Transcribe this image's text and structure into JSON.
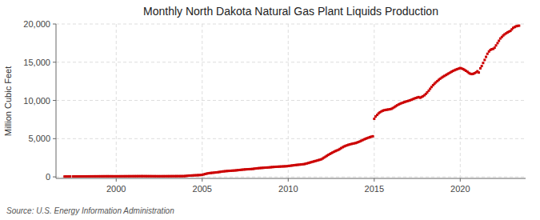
{
  "chart_data": {
    "type": "scatter",
    "title": "Monthly North Dakota Natural Gas Plant Liquids Production",
    "ylabel": "Million Cubic Feet",
    "annotations": [
      "Source: U.S. Energy Information Administration"
    ],
    "color": "#CC0000",
    "marker": "square",
    "grid": true,
    "xlim": [
      1996.5,
      2023.8
    ],
    "xticks": [
      2000,
      2005,
      2010,
      2015,
      2020
    ],
    "ylim": [
      -200,
      20000
    ],
    "yticks": [
      0,
      {
        "value": 5000,
        "label": "5,000"
      },
      {
        "value": 10000,
        "label": "10,000"
      },
      {
        "value": 15000,
        "label": "15,000"
      },
      {
        "value": 20000,
        "label": "20,000"
      }
    ],
    "x": [
      1997.0,
      1997.08,
      1997.17,
      1997.25,
      1997.33,
      1997.5,
      1997.58,
      1997.67,
      1997.75,
      1997.83,
      1997.92,
      1998.0,
      1998.08,
      1998.17,
      1998.25,
      1998.33,
      1998.42,
      1998.5,
      1998.58,
      1998.67,
      1998.75,
      1998.83,
      1998.92,
      1999.0,
      1999.08,
      1999.17,
      1999.25,
      1999.33,
      1999.42,
      1999.5,
      1999.58,
      1999.67,
      1999.75,
      1999.83,
      1999.92,
      2000.0,
      2000.08,
      2000.17,
      2000.25,
      2000.33,
      2000.42,
      2000.5,
      2000.58,
      2000.67,
      2000.75,
      2000.83,
      2000.92,
      2001.0,
      2001.08,
      2001.17,
      2001.25,
      2001.33,
      2001.42,
      2001.5,
      2001.58,
      2001.67,
      2001.75,
      2001.83,
      2001.92,
      2002.0,
      2002.08,
      2002.17,
      2002.25,
      2002.33,
      2002.42,
      2002.5,
      2002.58,
      2002.67,
      2002.75,
      2002.83,
      2002.92,
      2003.0,
      2003.08,
      2003.17,
      2003.25,
      2003.33,
      2003.42,
      2003.5,
      2003.58,
      2003.67,
      2003.75,
      2003.83,
      2003.92,
      2004.0,
      2004.08,
      2004.17,
      2004.25,
      2004.33,
      2004.42,
      2004.5,
      2004.58,
      2004.67,
      2004.75,
      2004.83,
      2004.92,
      2005.0,
      2005.08,
      2005.17,
      2005.25,
      2005.33,
      2005.42,
      2005.5,
      2005.58,
      2005.67,
      2005.75,
      2005.83,
      2005.92,
      2006.0,
      2006.08,
      2006.17,
      2006.25,
      2006.33,
      2006.42,
      2006.5,
      2006.58,
      2006.67,
      2006.75,
      2006.83,
      2006.92,
      2007.0,
      2007.08,
      2007.17,
      2007.25,
      2007.33,
      2007.42,
      2007.5,
      2007.58,
      2007.67,
      2007.75,
      2007.83,
      2007.92,
      2008.0,
      2008.08,
      2008.17,
      2008.25,
      2008.33,
      2008.42,
      2008.5,
      2008.58,
      2008.67,
      2008.75,
      2008.83,
      2008.92,
      2009.0,
      2009.08,
      2009.17,
      2009.25,
      2009.33,
      2009.42,
      2009.5,
      2009.58,
      2009.67,
      2009.75,
      2009.83,
      2009.92,
      2010.0,
      2010.08,
      2010.17,
      2010.25,
      2010.33,
      2010.42,
      2010.5,
      2010.58,
      2010.67,
      2010.75,
      2010.83,
      2010.92,
      2011.0,
      2011.08,
      2011.17,
      2011.25,
      2011.33,
      2011.42,
      2011.5,
      2011.58,
      2011.67,
      2011.75,
      2011.83,
      2011.92,
      2012.0,
      2012.08,
      2012.17,
      2012.25,
      2012.33,
      2012.42,
      2012.5,
      2012.58,
      2012.67,
      2012.75,
      2012.83,
      2012.92,
      2013.0,
      2013.08,
      2013.17,
      2013.25,
      2013.33,
      2013.42,
      2013.5,
      2013.58,
      2013.67,
      2013.75,
      2013.83,
      2013.92,
      2014.0,
      2014.08,
      2014.17,
      2014.25,
      2014.33,
      2014.42,
      2014.5,
      2014.58,
      2014.67,
      2014.75,
      2014.83,
      2014.92,
      2015.0,
      2015.08,
      2015.17,
      2015.25,
      2015.33,
      2015.42,
      2015.5,
      2015.58,
      2015.67,
      2015.75,
      2015.83,
      2015.92,
      2016.0,
      2016.08,
      2016.17,
      2016.25,
      2016.33,
      2016.42,
      2016.5,
      2016.58,
      2016.67,
      2016.75,
      2016.83,
      2016.92,
      2017.0,
      2017.08,
      2017.17,
      2017.25,
      2017.33,
      2017.42,
      2017.5,
      2017.58,
      2017.67,
      2017.75,
      2017.83,
      2017.92,
      2018.0,
      2018.08,
      2018.17,
      2018.25,
      2018.33,
      2018.42,
      2018.5,
      2018.58,
      2018.67,
      2018.75,
      2018.83,
      2018.92,
      2019.0,
      2019.08,
      2019.17,
      2019.25,
      2019.33,
      2019.42,
      2019.5,
      2019.58,
      2019.67,
      2019.75,
      2019.83,
      2019.92,
      2020.0,
      2020.08,
      2020.17,
      2020.25,
      2020.33,
      2020.42,
      2020.5,
      2020.58,
      2020.67,
      2020.75,
      2020.83,
      2020.92,
      2021.0,
      2021.08,
      2021.17,
      2021.25,
      2021.33,
      2021.42,
      2021.5,
      2021.58,
      2021.67,
      2021.75,
      2021.83,
      2021.92,
      2022.0,
      2022.08,
      2022.17,
      2022.25,
      2022.33,
      2022.42,
      2022.5,
      2022.58,
      2022.67,
      2022.75,
      2022.83,
      2022.92,
      2023.0,
      2023.08,
      2023.17,
      2023.25,
      2023.33,
      2023.42
    ],
    "values": [
      50,
      52,
      53,
      54,
      55,
      56,
      57,
      58,
      59,
      60,
      61,
      62,
      63,
      64,
      65,
      66,
      67,
      68,
      69,
      70,
      71,
      72,
      73,
      74,
      75,
      76,
      77,
      78,
      79,
      80,
      79,
      78,
      77,
      76,
      75,
      76,
      77,
      78,
      79,
      80,
      81,
      82,
      83,
      84,
      85,
      86,
      87,
      88,
      89,
      90,
      91,
      92,
      93,
      94,
      93,
      92,
      91,
      90,
      89,
      88,
      87,
      86,
      85,
      84,
      83,
      82,
      83,
      84,
      85,
      86,
      87,
      88,
      89,
      90,
      91,
      92,
      93,
      94,
      95,
      96,
      97,
      98,
      99,
      110,
      130,
      150,
      165,
      175,
      185,
      195,
      205,
      215,
      225,
      235,
      245,
      280,
      320,
      370,
      420,
      460,
      490,
      510,
      530,
      550,
      570,
      590,
      610,
      640,
      670,
      700,
      720,
      740,
      760,
      775,
      790,
      800,
      815,
      825,
      840,
      860,
      880,
      900,
      920,
      940,
      960,
      975,
      990,
      1000,
      1010,
      1020,
      1035,
      1060,
      1090,
      1110,
      1130,
      1150,
      1165,
      1180,
      1195,
      1210,
      1220,
      1230,
      1245,
      1265,
      1285,
      1300,
      1315,
      1325,
      1335,
      1345,
      1355,
      1365,
      1375,
      1385,
      1395,
      1420,
      1445,
      1470,
      1495,
      1520,
      1545,
      1565,
      1585,
      1605,
      1625,
      1645,
      1665,
      1710,
      1760,
      1810,
      1865,
      1920,
      1975,
      2025,
      2075,
      2130,
      2185,
      2240,
      2295,
      2400,
      2520,
      2640,
      2760,
      2880,
      2990,
      3090,
      3190,
      3290,
      3380,
      3460,
      3540,
      3650,
      3770,
      3880,
      3980,
      4060,
      4130,
      4195,
      4250,
      4300,
      4345,
      4385,
      4425,
      4490,
      4560,
      4640,
      4730,
      4820,
      4910,
      4990,
      5060,
      5130,
      5200,
      5260,
      5310,
      7600,
      7900,
      8100,
      8300,
      8450,
      8570,
      8660,
      8720,
      8760,
      8790,
      8820,
      8850,
      8900,
      9000,
      9120,
      9240,
      9360,
      9470,
      9560,
      9640,
      9710,
      9780,
      9840,
      9900,
      9960,
      10020,
      10090,
      10170,
      10250,
      10320,
      10380,
      10440,
      10350,
      10450,
      10550,
      10680,
      10850,
      11050,
      11280,
      11520,
      11760,
      11990,
      12180,
      12360,
      12530,
      12690,
      12840,
      12980,
      13100,
      13210,
      13320,
      13430,
      13540,
      13650,
      13760,
      13860,
      13950,
      14030,
      14100,
      14170,
      14240,
      14180,
      14100,
      14000,
      13880,
      13750,
      13600,
      13500,
      13450,
      13480,
      13560,
      13680,
      13820,
      13650,
      14200,
      14500,
      14900,
      15300,
      15700,
      16100,
      16400,
      16600,
      16700,
      16750,
      16900,
      17200,
      17500,
      17800,
      18100,
      18300,
      18500,
      18650,
      18780,
      18900,
      19000,
      19100,
      19300,
      19500,
      19600,
      19700,
      19750,
      19780
    ]
  }
}
